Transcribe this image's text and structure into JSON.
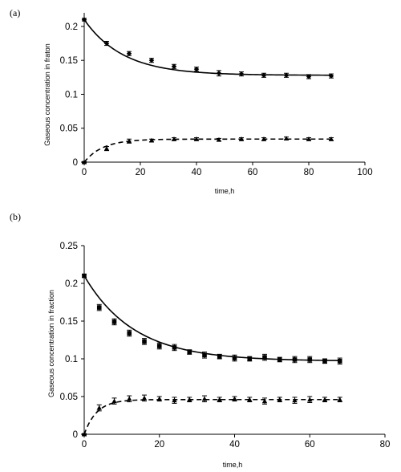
{
  "chart_data": [
    {
      "type": "scatter",
      "panel_label": "(a)",
      "xlabel": "time,h",
      "ylabel": "Gaseous  concentration in fraton",
      "xlim": [
        0,
        100
      ],
      "ylim": [
        0,
        0.22
      ],
      "x_ticks": [
        0,
        20,
        40,
        60,
        80,
        100
      ],
      "y_ticks": [
        0,
        0.05,
        0.1,
        0.15,
        0.2
      ],
      "x_tick_labels": [
        "0",
        "20",
        "40",
        "60",
        "80",
        "100"
      ],
      "y_tick_labels": [
        "0",
        "0.05",
        "0.1",
        "0.15",
        "0.2"
      ],
      "grid": false,
      "series": [
        {
          "marker": "diamond",
          "line_style": "solid",
          "x": [
            0,
            8,
            16,
            24,
            32,
            40,
            48,
            56,
            64,
            72,
            80,
            88
          ],
          "y": [
            0.21,
            0.175,
            0.16,
            0.15,
            0.141,
            0.137,
            0.131,
            0.13,
            0.128,
            0.128,
            0.126,
            0.127
          ],
          "error": [
            0.002,
            0.003,
            0.003,
            0.003,
            0.003,
            0.003,
            0.004,
            0.003,
            0.003,
            0.003,
            0.003,
            0.003
          ],
          "fit": {
            "y0": 0.21,
            "y_inf": 0.128,
            "k": 0.072
          }
        },
        {
          "marker": "triangle",
          "line_style": "dashed",
          "x": [
            0,
            8,
            16,
            24,
            32,
            40,
            48,
            56,
            64,
            72,
            80,
            88
          ],
          "y": [
            0.0,
            0.02,
            0.031,
            0.032,
            0.034,
            0.034,
            0.033,
            0.034,
            0.034,
            0.035,
            0.034,
            0.034
          ],
          "error": [
            0.001,
            0.003,
            0.003,
            0.002,
            0.002,
            0.002,
            0.002,
            0.002,
            0.002,
            0.002,
            0.002,
            0.002
          ],
          "fit": {
            "y0": 0.0,
            "y_inf": 0.034,
            "k": 0.15
          }
        }
      ]
    },
    {
      "type": "scatter",
      "panel_label": "(b)",
      "xlabel": "time,h",
      "ylabel": "Gaseous concentration in fraction",
      "xlim": [
        0,
        80
      ],
      "ylim": [
        0,
        0.25
      ],
      "x_ticks": [
        0,
        20,
        40,
        60,
        80
      ],
      "y_ticks": [
        0,
        0.05,
        0.1,
        0.15,
        0.2,
        0.25
      ],
      "x_tick_labels": [
        "0",
        "20",
        "40",
        "60",
        "80"
      ],
      "y_tick_labels": [
        "0",
        "0.05",
        "0.1",
        "0.15",
        "0.2",
        "0.25"
      ],
      "grid": false,
      "series": [
        {
          "marker": "square",
          "line_style": "solid",
          "x": [
            0,
            4,
            8,
            12,
            16,
            20,
            24,
            28,
            32,
            36,
            40,
            44,
            48,
            52,
            56,
            60,
            64,
            68
          ],
          "y": [
            0.21,
            0.168,
            0.149,
            0.134,
            0.123,
            0.117,
            0.115,
            0.109,
            0.105,
            0.103,
            0.101,
            0.1,
            0.102,
            0.099,
            0.099,
            0.099,
            0.097,
            0.097
          ],
          "error": [
            0.002,
            0.004,
            0.004,
            0.004,
            0.004,
            0.004,
            0.004,
            0.003,
            0.004,
            0.003,
            0.004,
            0.003,
            0.004,
            0.003,
            0.004,
            0.004,
            0.003,
            0.004
          ],
          "fit": {
            "y0": 0.21,
            "y_inf": 0.097,
            "k": 0.075
          }
        },
        {
          "marker": "triangle",
          "line_style": "dashed",
          "x": [
            0,
            4,
            8,
            12,
            16,
            20,
            24,
            28,
            32,
            36,
            40,
            44,
            48,
            52,
            56,
            60,
            64,
            68
          ],
          "y": [
            0.0,
            0.035,
            0.044,
            0.047,
            0.048,
            0.047,
            0.045,
            0.046,
            0.047,
            0.046,
            0.047,
            0.046,
            0.044,
            0.046,
            0.045,
            0.046,
            0.046,
            0.046
          ],
          "error": [
            0.001,
            0.004,
            0.004,
            0.004,
            0.004,
            0.003,
            0.004,
            0.003,
            0.004,
            0.003,
            0.003,
            0.003,
            0.004,
            0.003,
            0.004,
            0.004,
            0.003,
            0.003
          ],
          "fit": {
            "y0": 0.0,
            "y_inf": 0.046,
            "k": 0.3
          }
        }
      ]
    }
  ]
}
